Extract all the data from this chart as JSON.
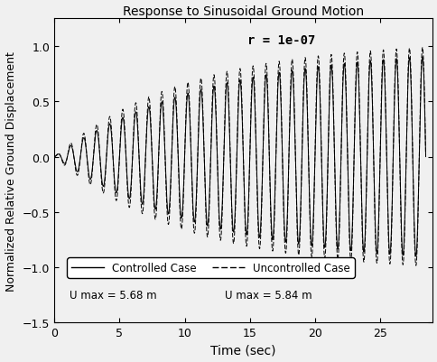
{
  "title": "Response to Sinusoidal Ground Motion",
  "annotation": "r = 1e-07",
  "xlabel": "Time (sec)",
  "ylabel": "Normalized Relative Ground Displacement",
  "xlim": [
    0,
    29
  ],
  "ylim": [
    -1.5,
    1.25
  ],
  "yticks": [
    -1.5,
    -1,
    -0.5,
    0,
    0.5,
    1
  ],
  "xticks": [
    0,
    5,
    10,
    15,
    20,
    25
  ],
  "controlled_label": "Controlled Case",
  "uncontrolled_label": "Uncontrolled Case",
  "controlled_umax": "U max = 5.68 m",
  "uncontrolled_umax": "U max = 5.84 m",
  "controlled_color": "#000000",
  "uncontrolled_color": "#000000",
  "background_color": "#f0f0f0",
  "plot_bg_color": "#f0f0f0",
  "duration": 28.5,
  "freq_hz": 1.0,
  "envelope_tau_controlled": 12.0,
  "envelope_tau_uncontrolled": 10.0,
  "envelope_max_controlled": 1.0,
  "envelope_max_uncontrolled": 1.05
}
